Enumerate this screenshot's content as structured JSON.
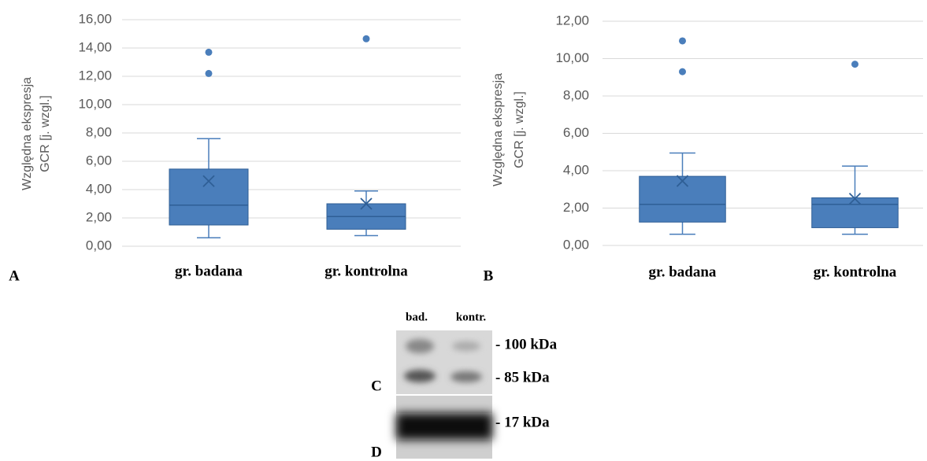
{
  "chart_data": [
    {
      "type": "box",
      "panel_label": "A",
      "ylabel": [
        "Względna ekspresja",
        "GCR [j. wzgl.]"
      ],
      "categories": [
        "gr. badana",
        "gr. kontrolna"
      ],
      "color": "#4a7ebb",
      "boxes": [
        {
          "min": 0.6,
          "q1": 1.5,
          "median": 2.9,
          "q3": 5.45,
          "max": 7.6,
          "mean": 4.6,
          "outliers": [
            12.2,
            13.7
          ]
        },
        {
          "min": 0.75,
          "q1": 1.2,
          "median": 2.1,
          "q3": 3.0,
          "max": 3.9,
          "mean": 3.0,
          "outliers": [
            14.65
          ]
        }
      ],
      "ylim": [
        0,
        16
      ],
      "yticks": [
        {
          "value": 0,
          "label": "0,00"
        },
        {
          "value": 2,
          "label": "2,00"
        },
        {
          "value": 4,
          "label": "4,00"
        },
        {
          "value": 6,
          "label": "6,00"
        },
        {
          "value": 8,
          "label": "8,00"
        },
        {
          "value": 10,
          "label": "10,00"
        },
        {
          "value": 12,
          "label": "12,00"
        },
        {
          "value": 14,
          "label": "14,00"
        },
        {
          "value": 16,
          "label": "16,00"
        }
      ],
      "grid": true
    },
    {
      "type": "box",
      "panel_label": "B",
      "ylabel": [
        "Względna ekspresja",
        "GCR [j. wzgl.]"
      ],
      "categories": [
        "gr. badana",
        "gr. kontrolna"
      ],
      "color": "#4a7ebb",
      "boxes": [
        {
          "min": 0.6,
          "q1": 1.25,
          "median": 2.2,
          "q3": 3.7,
          "max": 4.95,
          "mean": 3.45,
          "outliers": [
            9.3,
            10.95
          ]
        },
        {
          "min": 0.6,
          "q1": 0.95,
          "median": 2.2,
          "q3": 2.55,
          "max": 4.25,
          "mean": 2.5,
          "outliers": [
            9.7
          ]
        }
      ],
      "ylim": [
        0,
        12
      ],
      "yticks": [
        {
          "value": 0,
          "label": "0,00"
        },
        {
          "value": 2,
          "label": "2,00"
        },
        {
          "value": 4,
          "label": "4,00"
        },
        {
          "value": 6,
          "label": "6,00"
        },
        {
          "value": 8,
          "label": "8,00"
        },
        {
          "value": 10,
          "label": "10,00"
        },
        {
          "value": 12,
          "label": "12,00"
        }
      ],
      "grid": true
    }
  ],
  "blot": {
    "lanes": [
      "bad.",
      "kontr."
    ],
    "markers": [
      "- 100 kDa",
      "- 85 kDa",
      "- 17 kDa"
    ],
    "panel_labels": [
      "C",
      "D"
    ]
  }
}
